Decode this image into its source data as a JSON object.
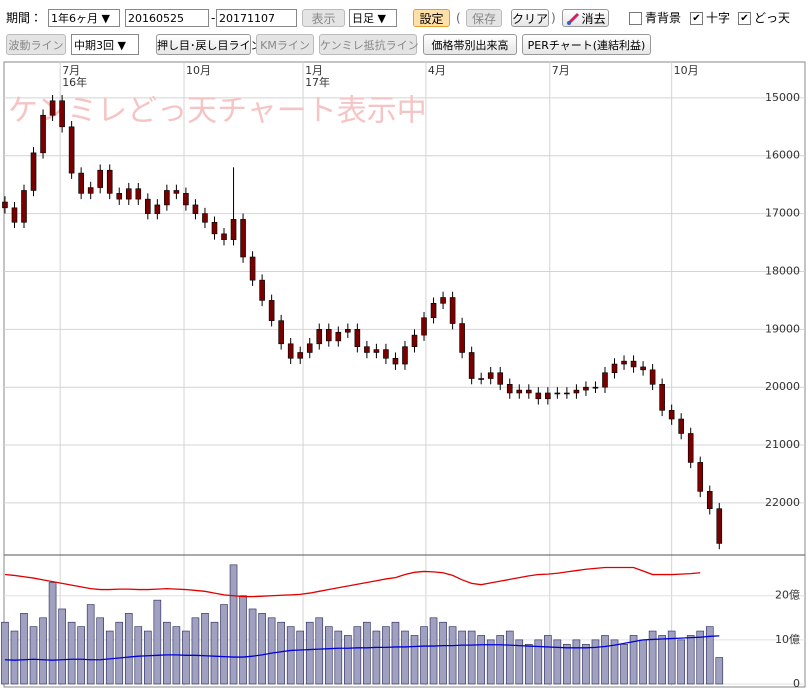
{
  "toolbar": {
    "period_label": "期間：",
    "period_select": "1年6ヶ月 ▼",
    "start_date": "20160525",
    "date_separator": "-",
    "end_date": "20171107",
    "show_button": "表示",
    "interval_select": "日足 ▼",
    "settings_button": "設定",
    "paren_open": "(",
    "save_button": "保存",
    "clear_button": "クリア",
    "paren_close": ")",
    "erase_button": "消去",
    "checkboxes": [
      {
        "label": "青背景",
        "checked": false
      },
      {
        "label": "十字",
        "checked": true
      },
      {
        "label": "どっ天",
        "checked": true
      }
    ],
    "wave_button": {
      "label": "波動ライン",
      "enabled": false
    },
    "wave_select": "中期3回 ▼",
    "row2_buttons": [
      {
        "label": "押し目･戻し目ライン",
        "enabled": true
      },
      {
        "label": "KMライン",
        "enabled": false
      },
      {
        "label": "ケンミレ抵抗ライン",
        "enabled": false
      },
      {
        "label": "価格帯別出来高",
        "enabled": true
      },
      {
        "label": "PERチャート(連結利益)",
        "enabled": true
      }
    ]
  },
  "chart_data": [
    {
      "type": "candlestick",
      "watermark": "ケンミレどっ天チャート表示中",
      "candle_color": "#7a0000",
      "grid": true,
      "xlim": [
        -0.1,
        84
      ],
      "xticks": [
        {
          "value": 5.8,
          "label": "7月"
        },
        {
          "value": 18.8,
          "label": "10月"
        },
        {
          "value": 31.3,
          "label": "1月"
        },
        {
          "value": 44.2,
          "label": "4月"
        },
        {
          "value": 57.2,
          "label": "7月"
        },
        {
          "value": 70,
          "label": "10月"
        }
      ],
      "year_ticks": [
        {
          "value": 5.8,
          "label": "16年"
        },
        {
          "value": 31.3,
          "label": "17年"
        }
      ],
      "ylim": [
        22900,
        14380
      ],
      "yticks": [
        15000,
        16000,
        17000,
        18000,
        19000,
        20000,
        21000,
        22000
      ],
      "open": [
        16800,
        16900,
        17150,
        16600,
        15950,
        15300,
        15050,
        15500,
        16300,
        16650,
        16550,
        16250,
        16650,
        16750,
        16570,
        16750,
        17000,
        16850,
        16600,
        16650,
        16850,
        17000,
        17150,
        17350,
        17450,
        17100,
        17750,
        18150,
        18500,
        18850,
        19250,
        19500,
        19400,
        19250,
        19000,
        19200,
        19050,
        19000,
        19300,
        19400,
        19350,
        19500,
        19600,
        19300,
        19100,
        18800,
        18550,
        18450,
        18900,
        19400,
        19850,
        19850,
        19750,
        19950,
        20100,
        20050,
        20100,
        20200,
        20100,
        20100,
        20100,
        20050,
        20000,
        20000,
        19750,
        19600,
        19550,
        19650,
        19700,
        19950,
        20400,
        20550,
        20800,
        21300,
        21800,
        22100
      ],
      "high": [
        17000,
        17250,
        17250,
        16700,
        16050,
        15400,
        15600,
        16400,
        16750,
        16750,
        16650,
        16750,
        16850,
        16850,
        16850,
        17100,
        17100,
        16950,
        16750,
        16950,
        17100,
        17250,
        17450,
        17550,
        17550,
        17850,
        18250,
        18600,
        18950,
        19350,
        19600,
        19600,
        19500,
        19350,
        19300,
        19300,
        19150,
        19400,
        19500,
        19500,
        19600,
        19700,
        19700,
        19400,
        19200,
        18900,
        18650,
        19000,
        19500,
        19950,
        19950,
        19950,
        20050,
        20200,
        20200,
        20200,
        20300,
        20300,
        20200,
        20200,
        20200,
        20150,
        20100,
        20100,
        19850,
        19700,
        19750,
        19800,
        20050,
        20500,
        20650,
        20900,
        21400,
        21900,
        22200,
        22800
      ],
      "low": [
        16700,
        16800,
        16500,
        15850,
        15200,
        14950,
        14950,
        15400,
        16200,
        16450,
        16150,
        16150,
        16550,
        16470,
        16470,
        16650,
        16750,
        16500,
        16500,
        16550,
        16750,
        16900,
        17050,
        17250,
        16200,
        17000,
        17650,
        18050,
        18400,
        18750,
        19150,
        19300,
        19150,
        18900,
        18900,
        18950,
        18900,
        18900,
        19200,
        19250,
        19250,
        19400,
        19200,
        19000,
        18700,
        18450,
        18350,
        18350,
        18800,
        19300,
        19750,
        19650,
        19650,
        19850,
        19950,
        19950,
        20000,
        20000,
        20000,
        20000,
        19950,
        19900,
        19900,
        19650,
        19500,
        19450,
        19450,
        19550,
        19600,
        19850,
        20300,
        20450,
        20700,
        21200,
        21700,
        22000
      ],
      "close": [
        16900,
        17150,
        16600,
        15950,
        15300,
        15050,
        15500,
        16300,
        16650,
        16550,
        16250,
        16650,
        16750,
        16570,
        16750,
        17000,
        16850,
        16600,
        16650,
        16850,
        17000,
        17150,
        17350,
        17450,
        17100,
        17750,
        18150,
        18500,
        18850,
        19250,
        19500,
        19400,
        19250,
        19000,
        19200,
        19050,
        19000,
        19300,
        19400,
        19350,
        19500,
        19600,
        19300,
        19100,
        18800,
        18550,
        18450,
        18900,
        19400,
        19850,
        19850,
        19750,
        19950,
        20100,
        20050,
        20100,
        20200,
        20100,
        20100,
        20100,
        20050,
        20000,
        20000,
        19750,
        19600,
        19550,
        19650,
        19700,
        19950,
        20400,
        20550,
        20800,
        21300,
        21800,
        22100,
        22700
      ]
    },
    {
      "type": "bar",
      "color": "#a0a0c0",
      "ylim": [
        0,
        29
      ],
      "yticks": [
        {
          "value": 20,
          "label": "20億"
        },
        {
          "value": 10,
          "label": "10億"
        },
        0
      ],
      "values": [
        14,
        12,
        16,
        13,
        15,
        23,
        17,
        14,
        13,
        18,
        15,
        12,
        14,
        16,
        13,
        12,
        19,
        14,
        13,
        12,
        15,
        16,
        14,
        18,
        27,
        20,
        17,
        16,
        15,
        14,
        13,
        12,
        14,
        15,
        13,
        12,
        11,
        13,
        14,
        12,
        13,
        14,
        12,
        11,
        13,
        15,
        14,
        13,
        12,
        12,
        11,
        10,
        11,
        12,
        10,
        9,
        10,
        11,
        10,
        9,
        10,
        9,
        10,
        11,
        10,
        9,
        11,
        10,
        12,
        11,
        12,
        10,
        11,
        12,
        13,
        6
      ],
      "lines": [
        {
          "color": "#e00000",
          "values": [
            24.8,
            24.6,
            24.3,
            24.0,
            23.6,
            23.2,
            22.8,
            22.4,
            22.0,
            21.6,
            21.4,
            21.4,
            21.5,
            21.5,
            21.4,
            21.4,
            21.5,
            21.6,
            21.5,
            21.4,
            21.2,
            21.0,
            20.6,
            20.2,
            20.0,
            19.8,
            19.8,
            19.9,
            20.0,
            20.1,
            20.2,
            20.3,
            20.6,
            21.0,
            21.4,
            21.8,
            22.2,
            22.6,
            23.0,
            23.4,
            23.8,
            24.1,
            24.8,
            25.3,
            25.5,
            25.4,
            25.2,
            24.6,
            23.6,
            22.8,
            22.5,
            22.9,
            23.3,
            23.7,
            24.1,
            24.5,
            24.8,
            24.9,
            25.1,
            25.4,
            25.7,
            26.0,
            26.2,
            26.4,
            26.4,
            26.4,
            26.4,
            25.6,
            24.8,
            24.8,
            24.8,
            24.9,
            25.0,
            25.2,
            null,
            null
          ]
        },
        {
          "color": "#0000dd",
          "values": [
            5.5,
            5.4,
            5.5,
            5.6,
            5.5,
            5.4,
            5.5,
            5.6,
            5.6,
            5.5,
            5.5,
            5.7,
            5.9,
            6.1,
            6.3,
            6.4,
            6.5,
            6.6,
            6.6,
            6.5,
            6.5,
            6.4,
            6.3,
            6.2,
            6.1,
            6.1,
            6.3,
            6.6,
            7.0,
            7.3,
            7.6,
            7.7,
            7.8,
            7.9,
            8.0,
            8.1,
            8.1,
            8.2,
            8.2,
            8.3,
            8.3,
            8.4,
            8.4,
            8.5,
            8.6,
            8.6,
            8.7,
            8.7,
            8.8,
            8.8,
            8.9,
            8.9,
            8.9,
            8.8,
            8.7,
            8.6,
            8.5,
            8.4,
            8.3,
            8.2,
            8.2,
            8.2,
            8.3,
            8.5,
            8.8,
            9.2,
            9.6,
            10.0,
            10.1,
            10.2,
            10.3,
            10.4,
            10.5,
            10.6,
            10.8,
            10.9
          ]
        }
      ]
    }
  ]
}
